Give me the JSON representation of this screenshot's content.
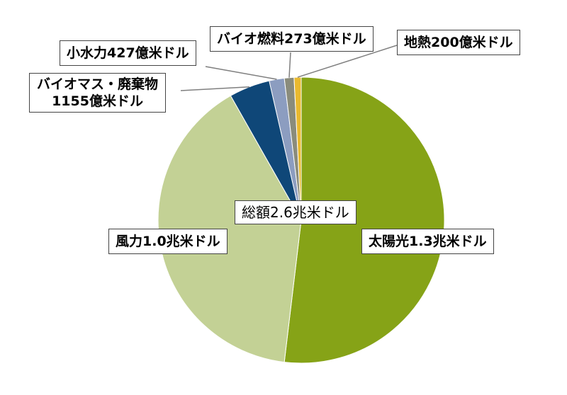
{
  "chart_data": {
    "type": "pie",
    "total_label": "総額2.6兆米ドル",
    "slices": [
      {
        "label": "太陽光1.3兆米ドル",
        "value": 13000,
        "color": "#86a317"
      },
      {
        "label": "風力1.0兆米ドル",
        "value": 10000,
        "color": "#c3d195"
      },
      {
        "label": "バイオマス・廃棄物\n1155億米ドル",
        "value": 1155,
        "color": "#0f4778"
      },
      {
        "label": "小水力427億米ドル",
        "value": 427,
        "color": "#8c9dc0"
      },
      {
        "label": "バイオ燃料273億米ドル",
        "value": 273,
        "color": "#8a8c7c"
      },
      {
        "label": "地熱200億米ドル",
        "value": 200,
        "color": "#e9b92f"
      }
    ]
  }
}
